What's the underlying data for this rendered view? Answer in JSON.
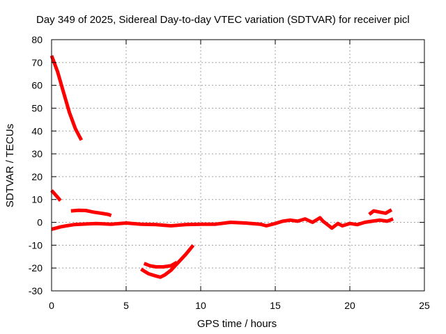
{
  "chart_data": {
    "type": "line",
    "title": "Day 349 of 2025, Sidereal Day-to-day VTEC variation (SDTVAR) for receiver picl",
    "xlabel": "GPS time / hours",
    "ylabel": "SDTVAR / TECUs",
    "xlim": [
      0,
      25
    ],
    "ylim": [
      -30,
      80
    ],
    "xticks": [
      0,
      5,
      10,
      15,
      20,
      25
    ],
    "yticks": [
      -30,
      -20,
      -10,
      0,
      10,
      20,
      30,
      40,
      50,
      60,
      70,
      80
    ],
    "grid": true,
    "color": "#ff0000",
    "series": [
      {
        "name": "arc-steep-decline",
        "x": [
          0.0,
          0.4,
          0.8,
          1.2,
          1.6,
          2.0
        ],
        "y": [
          73,
          66,
          57,
          48,
          41,
          36
        ]
      },
      {
        "name": "arc-short-decline",
        "x": [
          0.0,
          0.2,
          0.4,
          0.6
        ],
        "y": [
          14,
          12.5,
          11,
          9.5
        ]
      },
      {
        "name": "arc-plateau",
        "x": [
          1.3,
          1.8,
          2.3,
          2.8,
          3.3,
          3.8,
          4.0
        ],
        "y": [
          5,
          5.3,
          5.2,
          4.5,
          4,
          3.5,
          3
        ]
      },
      {
        "name": "arc-main-baseline",
        "x": [
          0.0,
          0.3,
          0.6,
          1.0,
          1.5,
          2.0,
          3.0,
          4.0,
          5.0,
          6.0,
          7.0,
          8.0,
          9.0,
          10.0,
          11.0,
          12.0,
          13.0,
          14.0,
          14.4,
          15.0,
          15.5,
          16.0,
          16.5,
          17.0,
          17.5,
          18.0,
          18.2,
          18.5,
          18.8,
          19.2,
          19.5,
          20.0,
          20.5,
          21.0,
          21.5,
          22.0,
          22.5,
          22.9
        ],
        "y": [
          -3,
          -2.5,
          -2,
          -1.5,
          -1,
          -0.8,
          -0.5,
          -0.8,
          -0.3,
          -0.8,
          -1.0,
          -1.5,
          -1.0,
          -0.8,
          -0.8,
          0.0,
          -0.3,
          -0.8,
          -1.5,
          -0.5,
          0.5,
          1.0,
          0.5,
          1.5,
          0.0,
          2.0,
          0.5,
          -1.0,
          -2.5,
          -0.5,
          -1.5,
          -0.5,
          -1.0,
          0.0,
          0.5,
          1.0,
          0.5,
          1.5
        ]
      },
      {
        "name": "arc-late-upper",
        "x": [
          21.3,
          21.6,
          22.0,
          22.4,
          22.8
        ],
        "y": [
          3.5,
          5,
          4.5,
          4,
          5.5
        ]
      },
      {
        "name": "arc-dip-lower",
        "x": [
          6.0,
          6.5,
          7.0,
          7.3,
          7.6,
          8.0,
          8.5,
          9.0,
          9.5
        ],
        "y": [
          -20.5,
          -22.5,
          -23.5,
          -24,
          -23,
          -21,
          -17.5,
          -14,
          -10
        ]
      },
      {
        "name": "arc-dip-upper",
        "x": [
          6.2,
          6.6,
          7.0,
          7.5,
          8.0,
          8.4
        ],
        "y": [
          -18,
          -19,
          -19.5,
          -19.5,
          -19,
          -17.5
        ]
      }
    ]
  }
}
